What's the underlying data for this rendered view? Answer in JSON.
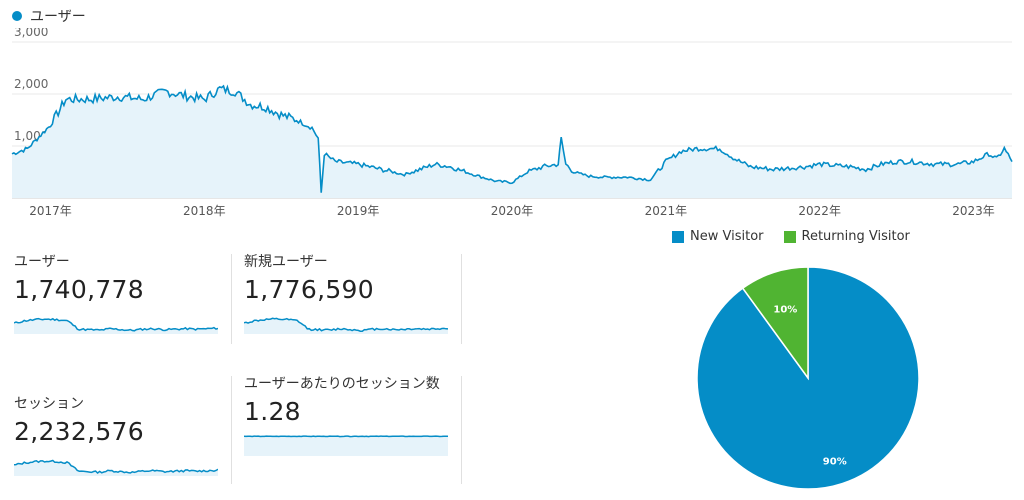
{
  "main_legend": {
    "label": "ユーザー",
    "color": "#058dc7"
  },
  "chart_data": [
    {
      "type": "area",
      "series": [
        {
          "name": "ユーザー",
          "color": "#058dc7"
        }
      ],
      "ylim": [
        0,
        3000
      ],
      "yticks": [
        "3,000",
        "2,000",
        "1,000"
      ],
      "xticks": [
        "2017年",
        "2018年",
        "2019年",
        "2020年",
        "2021年",
        "2022年",
        "2023年"
      ],
      "x": [
        2016.75,
        2016.85,
        2017.0,
        2017.1,
        2017.25,
        2017.45,
        2017.6,
        2017.75,
        2017.9,
        2018.0,
        2018.1,
        2018.2,
        2018.3,
        2018.4,
        2018.5,
        2018.6,
        2018.7,
        2018.74,
        2018.76,
        2018.78,
        2018.85,
        2019.0,
        2019.15,
        2019.3,
        2019.4,
        2019.5,
        2019.6,
        2019.75,
        2019.9,
        2020.0,
        2020.1,
        2020.2,
        2020.3,
        2020.32,
        2020.35,
        2020.4,
        2020.5,
        2020.6,
        2020.75,
        2020.9,
        2021.0,
        2021.1,
        2021.2,
        2021.35,
        2021.45,
        2021.55,
        2021.7,
        2021.9,
        2022.0,
        2022.2,
        2022.3,
        2022.4,
        2022.5,
        2022.6,
        2022.75,
        2022.9,
        2023.0,
        2023.1,
        2023.15,
        2023.2,
        2023.25
      ],
      "values": [
        850,
        950,
        1400,
        1900,
        1900,
        1950,
        1900,
        2050,
        1950,
        1900,
        2100,
        2050,
        1800,
        1750,
        1600,
        1500,
        1350,
        1150,
        100,
        850,
        700,
        650,
        550,
        450,
        550,
        650,
        600,
        450,
        320,
        300,
        500,
        600,
        650,
        1150,
        650,
        500,
        420,
        400,
        400,
        350,
        700,
        900,
        950,
        950,
        750,
        600,
        550,
        600,
        650,
        600,
        550,
        650,
        700,
        700,
        650,
        650,
        700,
        850,
        750,
        950,
        700
      ]
    },
    {
      "type": "pie",
      "categories": [
        "New Visitor",
        "Returning Visitor"
      ],
      "values": [
        90,
        10
      ],
      "colors": [
        "#058dc7",
        "#50b432"
      ],
      "labels": [
        "90%",
        "10%"
      ]
    }
  ],
  "metrics": [
    {
      "label": "ユーザー",
      "value": "1,740,778",
      "spark": [
        0.45,
        0.55,
        0.6,
        0.62,
        0.6,
        0.55,
        0.2,
        0.18,
        0.16,
        0.22,
        0.18,
        0.15,
        0.2,
        0.22,
        0.18,
        0.2,
        0.22,
        0.2,
        0.22,
        0.24
      ]
    },
    {
      "label": "新規ユーザー",
      "value": "1,776,590",
      "spark": [
        0.45,
        0.55,
        0.6,
        0.62,
        0.6,
        0.55,
        0.2,
        0.18,
        0.16,
        0.22,
        0.18,
        0.15,
        0.2,
        0.22,
        0.18,
        0.2,
        0.22,
        0.2,
        0.22,
        0.24
      ]
    },
    {
      "label": "セッション",
      "value": "2,232,576",
      "spark": [
        0.45,
        0.55,
        0.6,
        0.62,
        0.6,
        0.55,
        0.2,
        0.18,
        0.16,
        0.22,
        0.18,
        0.15,
        0.2,
        0.22,
        0.18,
        0.2,
        0.22,
        0.2,
        0.22,
        0.24
      ]
    },
    {
      "label": "ユーザーあたりのセッション数",
      "value": "1.28",
      "spark": [
        0.82,
        0.82,
        0.82,
        0.82,
        0.82,
        0.82,
        0.82,
        0.82,
        0.82,
        0.82,
        0.82,
        0.82,
        0.82,
        0.82,
        0.82,
        0.82,
        0.82,
        0.82,
        0.82,
        0.82
      ]
    }
  ]
}
